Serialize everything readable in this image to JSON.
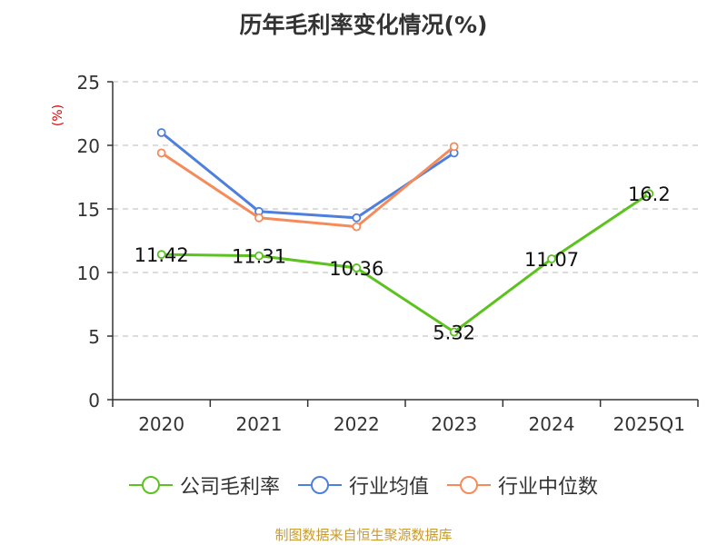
{
  "title": "历年毛利率变化情况(%)",
  "source": "制图数据来自恒生聚源数据库",
  "chart_data": {
    "type": "line",
    "title": "历年毛利率变化情况(%)",
    "ylabel": "(%)",
    "xlabel": "",
    "categories": [
      "2020",
      "2021",
      "2022",
      "2023",
      "2024",
      "2025Q1"
    ],
    "ylim": [
      0,
      25
    ],
    "yticks": [
      0,
      5,
      10,
      15,
      20,
      25
    ],
    "grid": true,
    "legend": "bottom",
    "series": [
      {
        "name": "公司毛利率",
        "color": "#5cc21e",
        "values": [
          11.42,
          11.31,
          10.36,
          5.32,
          11.07,
          16.2
        ],
        "labels": [
          "11.42",
          "11.31",
          "10.36",
          "5.32",
          "11.07",
          "16.2"
        ]
      },
      {
        "name": "行业均值",
        "color": "#4f7fdc",
        "values": [
          21.0,
          14.8,
          14.3,
          19.4,
          null,
          null
        ]
      },
      {
        "name": "行业中位数",
        "color": "#f58b5a",
        "values": [
          19.4,
          14.3,
          13.6,
          19.9,
          null,
          null
        ]
      }
    ]
  }
}
